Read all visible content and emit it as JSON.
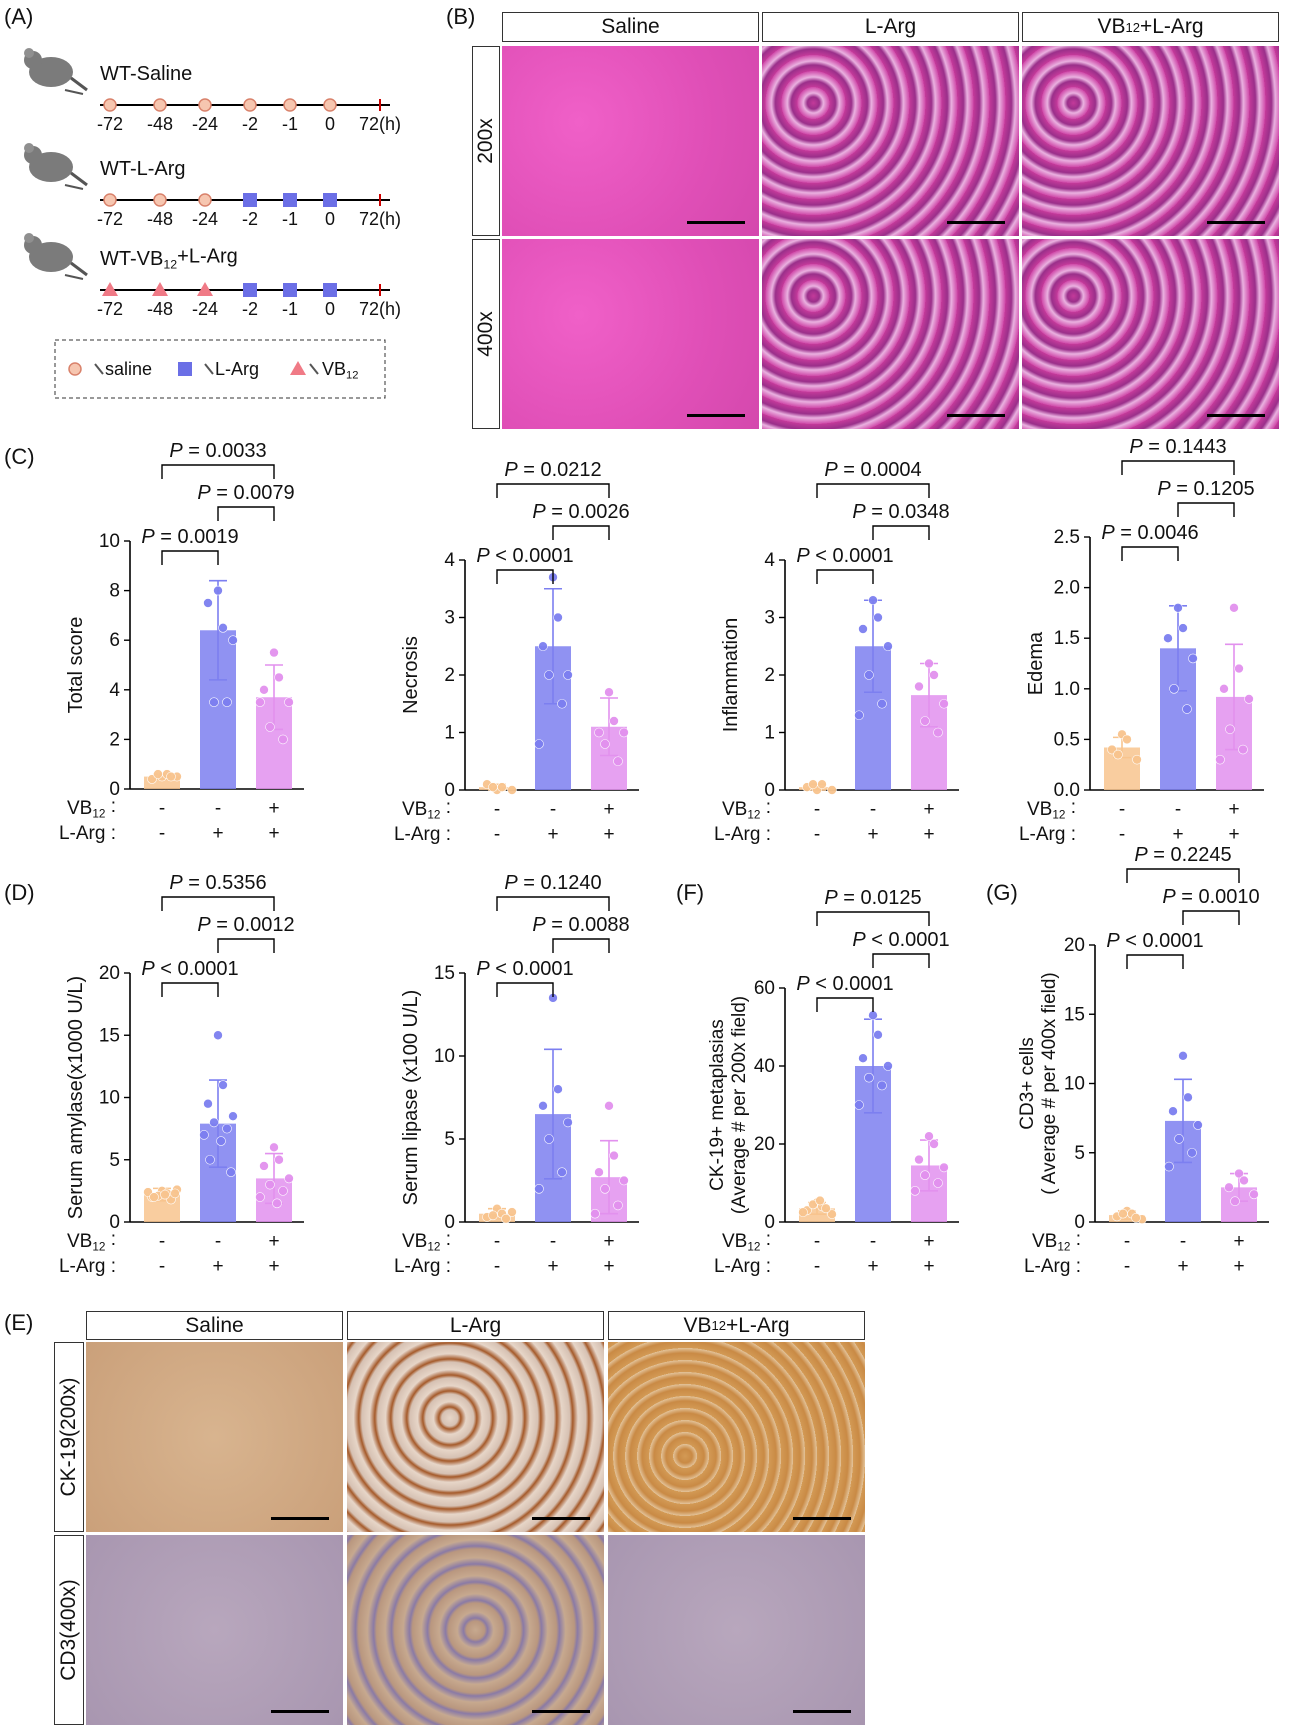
{
  "panels": {
    "A": "(A)",
    "B": "(B)",
    "C": "(C)",
    "D": "(D)",
    "E": "(E)",
    "F": "(F)",
    "G": "(G)"
  },
  "scheme": {
    "groups": [
      "WT-Saline",
      "WT-L-Arg",
      "WT-VB12+L-Arg"
    ],
    "timepoints": [
      "-72",
      "-48",
      "-24",
      "-2",
      "-1",
      "0",
      "72(h)"
    ],
    "markers": [
      [
        "saline",
        "saline",
        "saline",
        "saline",
        "saline",
        "saline"
      ],
      [
        "saline",
        "saline",
        "saline",
        "L-Arg",
        "L-Arg",
        "L-Arg"
      ],
      [
        "VB12",
        "VB12",
        "VB12",
        "L-Arg",
        "L-Arg",
        "L-Arg"
      ]
    ],
    "legend": {
      "saline": "saline",
      "larg": "L-Arg",
      "vb": "VB12"
    },
    "colors": {
      "saline_fill": "#f6c6b0",
      "saline_stroke": "#d9826b",
      "larg": "#6b6fe6",
      "vb": "#f07a86"
    }
  },
  "he_panel": {
    "columns": [
      "Saline",
      "L-Arg",
      "VB12+L-Arg"
    ],
    "rows": [
      "200x",
      "400x"
    ]
  },
  "ihc_panel": {
    "columns": [
      "Saline",
      "L-Arg",
      "VB12+L-Arg"
    ],
    "rows": [
      "CK-19(200x)",
      "CD3(400x)"
    ]
  },
  "group_rows": {
    "vb": "VB12 :",
    "larg": "L-Arg :",
    "signs_vb": [
      "-",
      "-",
      "+"
    ],
    "signs_larg": [
      "-",
      "+",
      "+"
    ]
  },
  "group_colors": [
    "#f8c48e",
    "#7c7ff0",
    "#e291ee"
  ],
  "chart_data": [
    {
      "id": "total",
      "type": "bar",
      "ylabel": "Total score",
      "ylim": [
        0,
        10
      ],
      "ticks": [
        0,
        2,
        4,
        6,
        8,
        10
      ],
      "values": [
        0.5,
        6.4,
        3.7
      ],
      "errors": [
        0.1,
        2.0,
        1.3
      ],
      "points": [
        [
          0.5,
          0.6,
          0.4,
          0.5,
          0.6,
          0.5
        ],
        [
          8.0,
          6.5,
          7.5,
          6.0,
          3.5,
          3.5
        ],
        [
          5.5,
          4.5,
          4.0,
          3.5,
          2.5,
          2.0,
          3.5
        ]
      ],
      "pvalues": [
        "P = 0.0019",
        "P = 0.0079",
        "P = 0.0033"
      ]
    },
    {
      "id": "necrosis",
      "type": "bar",
      "ylabel": "Necrosis",
      "ylim": [
        0,
        4
      ],
      "ticks": [
        0,
        1,
        2,
        3,
        4
      ],
      "values": [
        0.05,
        2.5,
        1.1
      ],
      "errors": [
        0.05,
        1.0,
        0.5
      ],
      "points": [
        [
          0.0,
          0.05,
          0.1,
          0.0,
          0.05
        ],
        [
          3.7,
          3.0,
          2.5,
          2.0,
          2.0,
          1.5,
          0.8
        ],
        [
          1.7,
          1.2,
          1.0,
          1.0,
          0.8,
          0.5
        ]
      ],
      "pvalues": [
        "P < 0.0001",
        "P = 0.0026",
        "P = 0.0212"
      ]
    },
    {
      "id": "inflammation",
      "type": "bar",
      "ylabel": "Inflammation",
      "ylim": [
        0,
        4
      ],
      "ticks": [
        0,
        1,
        2,
        3,
        4
      ],
      "values": [
        0.05,
        2.5,
        1.65
      ],
      "errors": [
        0.05,
        0.8,
        0.55
      ],
      "points": [
        [
          0.0,
          0.1,
          0.05,
          0.0,
          0.1
        ],
        [
          3.3,
          3.0,
          2.8,
          2.5,
          2.0,
          1.5,
          1.3
        ],
        [
          2.2,
          2.0,
          1.8,
          1.5,
          1.2,
          1.0
        ]
      ],
      "pvalues": [
        "P < 0.0001",
        "P = 0.0348",
        "P = 0.0004"
      ]
    },
    {
      "id": "edema",
      "type": "bar",
      "ylabel": "Edema",
      "ylim": [
        0,
        2.5
      ],
      "ticks": [
        0.0,
        0.5,
        1.0,
        1.5,
        2.0,
        2.5
      ],
      "values": [
        0.42,
        1.4,
        0.92
      ],
      "errors": [
        0.1,
        0.42,
        0.52
      ],
      "points": [
        [
          0.55,
          0.5,
          0.4,
          0.3,
          0.35
        ],
        [
          1.8,
          1.6,
          1.5,
          1.3,
          1.0,
          0.8
        ],
        [
          1.8,
          1.2,
          1.0,
          0.9,
          0.6,
          0.4,
          0.3
        ]
      ],
      "pvalues": [
        "P = 0.0046",
        "P = 0.1205",
        "P = 0.1443"
      ]
    },
    {
      "id": "amylase",
      "type": "bar",
      "ylabel": "Serum amylase(x1000 U/L)",
      "ylim": [
        0,
        20
      ],
      "ticks": [
        0,
        5,
        10,
        15,
        20
      ],
      "values": [
        2.2,
        7.9,
        3.5
      ],
      "errors": [
        0.5,
        3.5,
        2.0
      ],
      "points": [
        [
          2.5,
          2.3,
          2.0,
          2.6,
          2.1,
          1.8,
          2.4,
          2.2,
          2.0,
          2.3
        ],
        [
          15.0,
          11.0,
          9.5,
          8.5,
          8.0,
          7.5,
          7.0,
          6.5,
          5.0,
          4.0
        ],
        [
          6.0,
          5.0,
          4.5,
          3.5,
          3.0,
          2.5,
          2.0,
          1.5
        ]
      ],
      "pvalues": [
        "P < 0.0001",
        "P = 0.0012",
        "P = 0.5356"
      ]
    },
    {
      "id": "lipase",
      "type": "bar",
      "ylabel": "Serum lipase (x100 U/L)",
      "ylim": [
        0,
        15
      ],
      "ticks": [
        0,
        5,
        10,
        15
      ],
      "values": [
        0.5,
        6.5,
        2.7
      ],
      "errors": [
        0.3,
        3.9,
        2.2
      ],
      "points": [
        [
          0.8,
          0.5,
          0.3,
          0.6,
          0.4,
          0.2
        ],
        [
          13.5,
          8.0,
          7.0,
          6.0,
          5.0,
          3.0,
          2.0
        ],
        [
          7.0,
          4.0,
          3.0,
          2.5,
          2.0,
          1.0,
          0.5
        ]
      ],
      "pvalues": [
        "P < 0.0001",
        "P = 0.0088",
        "P = 0.1240"
      ]
    },
    {
      "id": "ck19",
      "type": "bar",
      "ylabel": "CK-19+ metaplasias",
      "ylabel2": "(Average # per 200x field)",
      "ylim": [
        0,
        60
      ],
      "ticks": [
        0,
        20,
        40,
        60
      ],
      "values": [
        3.5,
        40,
        14.5
      ],
      "errors": [
        1.5,
        12,
        6.5
      ],
      "points": [
        [
          5.0,
          4.0,
          3.0,
          2.0,
          4.5,
          3.5,
          2.5,
          5.5
        ],
        [
          53.0,
          48.0,
          42.0,
          40.0,
          37.0,
          35.0,
          30.0
        ],
        [
          22.0,
          20.0,
          16.0,
          14.0,
          12.0,
          10.0,
          8.0
        ]
      ],
      "pvalues": [
        "P < 0.0001",
        "P < 0.0001",
        "P = 0.0125"
      ]
    },
    {
      "id": "cd3",
      "type": "bar",
      "ylabel": "CD3+ cells",
      "ylabel2": "( Average # per 400x field)",
      "ylim": [
        0,
        20
      ],
      "ticks": [
        0,
        5,
        10,
        15,
        20
      ],
      "values": [
        0.5,
        7.3,
        2.5
      ],
      "errors": [
        0.3,
        3.0,
        1.0
      ],
      "points": [
        [
          0.8,
          0.6,
          0.4,
          0.2,
          0.6,
          0.3
        ],
        [
          12.0,
          9.0,
          8.0,
          7.0,
          6.0,
          5.0,
          4.0
        ],
        [
          3.5,
          3.0,
          2.5,
          2.0,
          1.5
        ]
      ],
      "pvalues": [
        "P < 0.0001",
        "P = 0.0010",
        "P = 0.2245"
      ]
    }
  ]
}
